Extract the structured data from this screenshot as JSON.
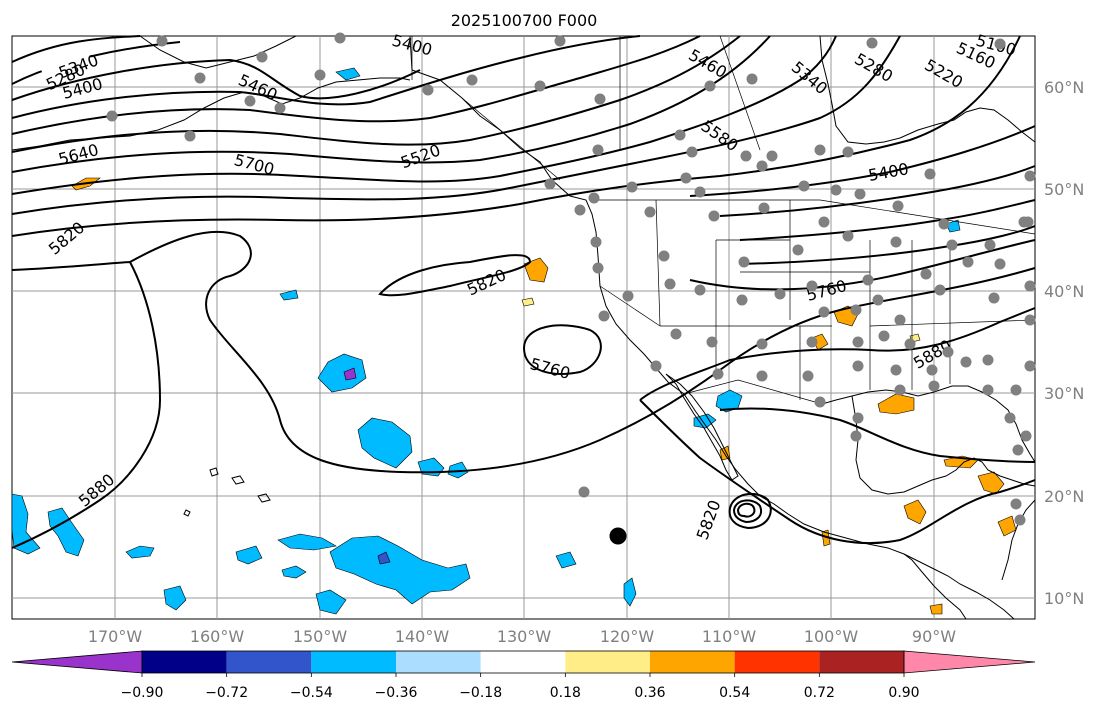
{
  "title": "2025100700 F000",
  "lon_labels": [
    "170°W",
    "160°W",
    "150°W",
    "140°W",
    "130°W",
    "120°W",
    "110°W",
    "100°W",
    "90°W"
  ],
  "lat_labels": [
    "60°N",
    "50°N",
    "40°N",
    "30°N",
    "20°N",
    "10°N"
  ],
  "colorbar": {
    "colors": [
      "#9933cc",
      "#000088",
      "#3355cc",
      "#00bbff",
      "#aaddff",
      "#ffffff",
      "#ffee88",
      "#ffa500",
      "#ff3300",
      "#aa2222",
      "#ff88aa"
    ],
    "tick_labels": [
      "−0.90",
      "−0.72",
      "−0.54",
      "−0.36",
      "−0.18",
      "0.18",
      "0.36",
      "0.54",
      "0.72",
      "0.90"
    ]
  },
  "contour_labels": [
    "5280",
    "5340",
    "5400",
    "5400",
    "5460",
    "5640",
    "5700",
    "5520",
    "5460",
    "5340",
    "5280",
    "5220",
    "5160",
    "5100",
    "5580",
    "5400",
    "5820",
    "5820",
    "5760",
    "5760",
    "5880",
    "5880",
    "5820"
  ],
  "colors": {
    "station": "#808080",
    "neg_fill": "#00bbff",
    "pos_fill": "#ffa500",
    "yellow_fill": "#ffee88"
  }
}
